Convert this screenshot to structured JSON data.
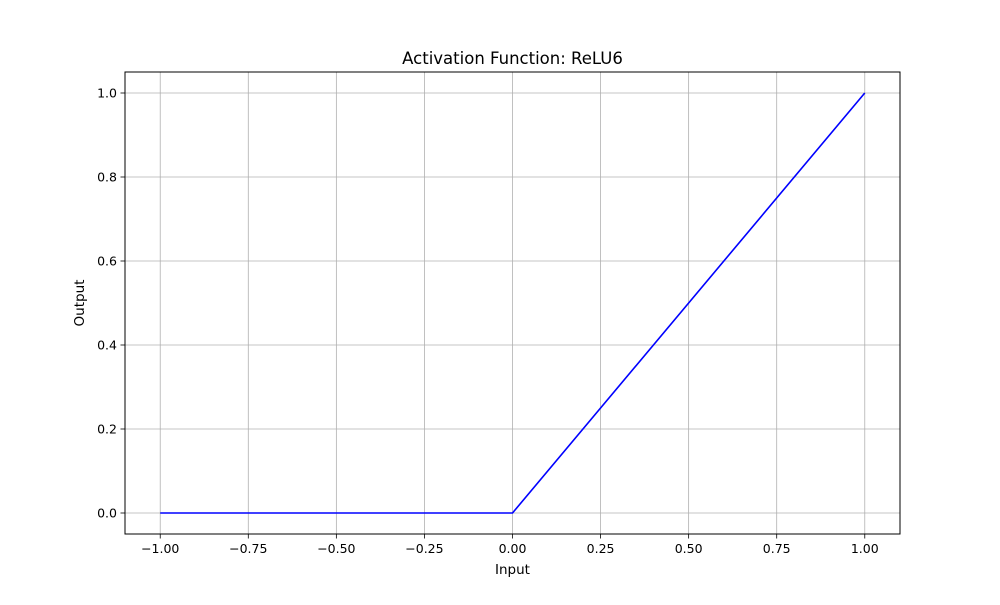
{
  "chart_data": {
    "type": "line",
    "title": "Activation Function: ReLU6",
    "xlabel": "Input",
    "ylabel": "Output",
    "xlim": [
      -1.1,
      1.1
    ],
    "ylim": [
      -0.05,
      1.05
    ],
    "grid": true,
    "x_ticks": [
      -1.0,
      -0.75,
      -0.5,
      -0.25,
      0.0,
      0.25,
      0.5,
      0.75,
      1.0
    ],
    "x_tick_labels": [
      "−1.00",
      "−0.75",
      "−0.50",
      "−0.25",
      "0.00",
      "0.25",
      "0.50",
      "0.75",
      "1.00"
    ],
    "y_ticks": [
      0.0,
      0.2,
      0.4,
      0.6,
      0.8,
      1.0
    ],
    "y_tick_labels": [
      "0.0",
      "0.2",
      "0.4",
      "0.6",
      "0.8",
      "1.0"
    ],
    "series": [
      {
        "color": "#0000ff",
        "x": [
          -1.0,
          0.0,
          1.0
        ],
        "y": [
          0.0,
          0.0,
          1.0
        ]
      }
    ]
  }
}
